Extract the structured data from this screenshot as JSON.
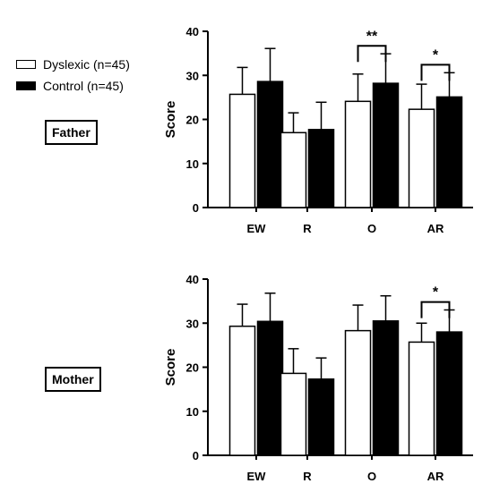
{
  "legend": {
    "dyslexic_label": "Dyslexic (n=45)",
    "control_label": "Control (n=45)"
  },
  "panels": {
    "father_label": "Father",
    "mother_label": "Mother"
  },
  "colors": {
    "dyslexic": "#ffffff",
    "control": "#000000",
    "stroke": "#000000"
  },
  "chart_data": [
    {
      "type": "bar",
      "panel": "Father",
      "categories": [
        "EW",
        "R",
        "O",
        "AR"
      ],
      "ylabel": "Score",
      "ylim": [
        0,
        40
      ],
      "yticks": [
        0,
        10,
        20,
        30,
        40
      ],
      "series": [
        {
          "name": "Dyslexic (n=45)",
          "values": [
            25.7,
            17.0,
            24.1,
            22.3
          ],
          "error": [
            6.1,
            4.5,
            6.2,
            5.7
          ]
        },
        {
          "name": "Control (n=45)",
          "values": [
            28.6,
            17.7,
            28.2,
            25.1
          ],
          "error": [
            7.5,
            6.2,
            6.7,
            5.5
          ]
        }
      ],
      "significance": [
        {
          "category": "O",
          "label": "**"
        },
        {
          "category": "AR",
          "label": "*"
        }
      ]
    },
    {
      "type": "bar",
      "panel": "Mother",
      "categories": [
        "EW",
        "R",
        "O",
        "AR"
      ],
      "ylabel": "Score",
      "ylim": [
        0,
        40
      ],
      "yticks": [
        0,
        10,
        20,
        30,
        40
      ],
      "series": [
        {
          "name": "Dyslexic (n=45)",
          "values": [
            29.3,
            18.6,
            28.3,
            25.7
          ],
          "error": [
            5.0,
            5.6,
            5.8,
            4.3
          ]
        },
        {
          "name": "Control (n=45)",
          "values": [
            30.4,
            17.3,
            30.5,
            28.0
          ],
          "error": [
            6.4,
            4.8,
            5.7,
            5.0
          ]
        }
      ],
      "significance": [
        {
          "category": "AR",
          "label": "*"
        }
      ]
    }
  ]
}
